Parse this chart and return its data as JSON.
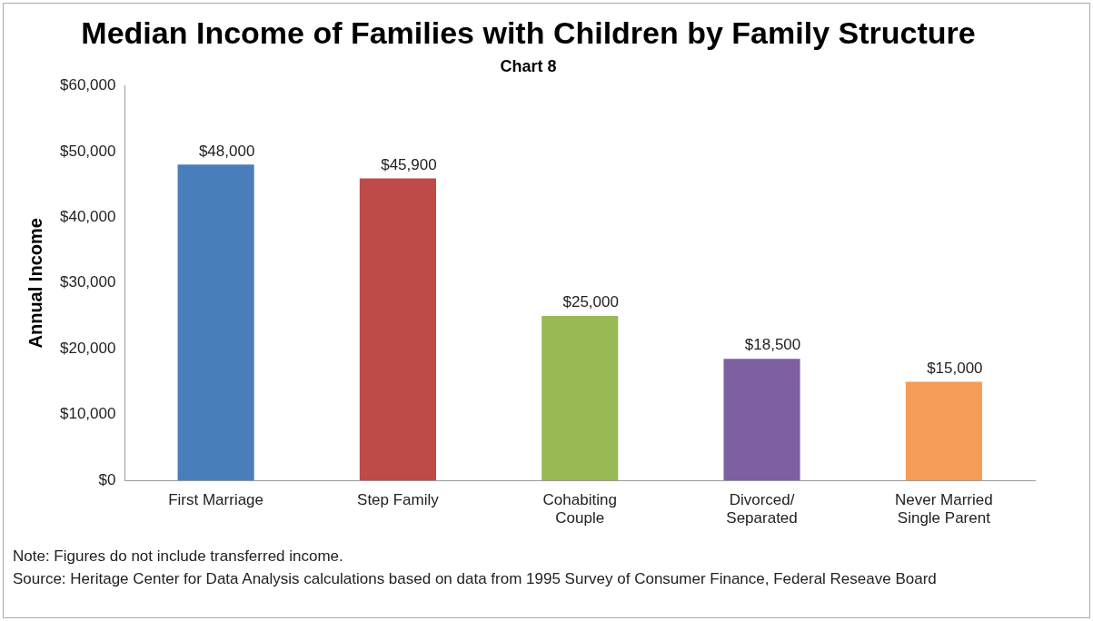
{
  "chart_data": {
    "type": "bar",
    "title": "Median Income of Families with Children by Family Structure",
    "subtitle": "Chart 8",
    "ylabel": "Annual Income",
    "categories": [
      "First Marriage",
      "Step Family",
      "Cohabiting Couple",
      "Divorced/Separated",
      "Never Married Single Parent"
    ],
    "values": [
      48000,
      45900,
      25000,
      18500,
      15000
    ],
    "colors": [
      "#4a7ebb",
      "#be4b48",
      "#98b954",
      "#7d60a0",
      "#f59d56"
    ],
    "value_labels": [
      "$48,000",
      "$45,900",
      "$25,000",
      "$18,500",
      "$15,000"
    ],
    "ylim": [
      0,
      60000
    ],
    "yticks": [
      {
        "value": 0,
        "label": "$0"
      },
      {
        "value": 10000,
        "label": "$10,000"
      },
      {
        "value": 20000,
        "label": "$20,000"
      },
      {
        "value": 30000,
        "label": "$30,000"
      },
      {
        "value": 40000,
        "label": "$40,000"
      },
      {
        "value": 50000,
        "label": "$50,000"
      },
      {
        "value": 60000,
        "label": "$60,000"
      }
    ],
    "grid": false,
    "legend": false,
    "annotations": [
      "Note: Figures do not include transferred income.",
      "Source: Heritage Center for Data Analysis calculations based on data from 1995 Survey of Consumer Finance, Federal Reseave Board"
    ]
  }
}
